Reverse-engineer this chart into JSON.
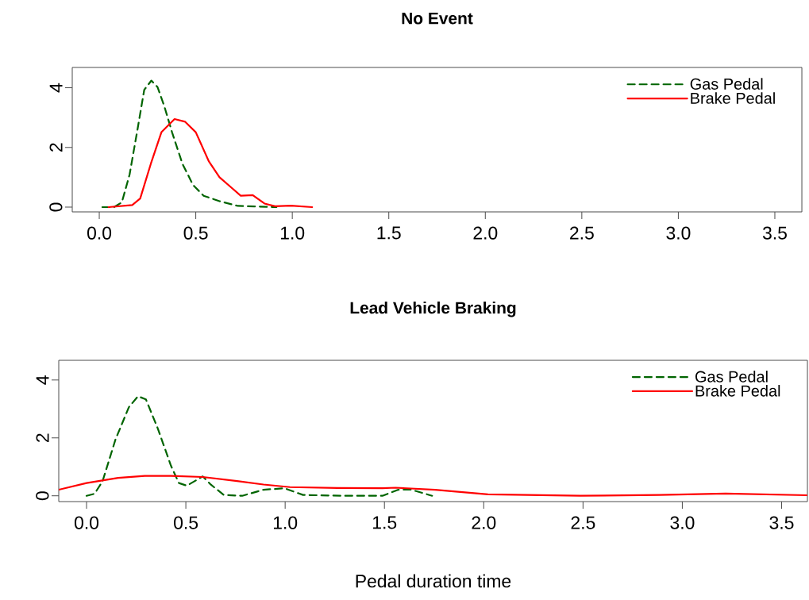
{
  "chart_data": [
    {
      "type": "line",
      "title": "No Event",
      "xlim": [
        -0.14,
        3.64
      ],
      "ylim": [
        -0.16,
        4.68
      ],
      "xticks": [
        {
          "value": 0,
          "label": "0.0"
        },
        {
          "value": 0.5,
          "label": "0.5"
        },
        {
          "value": 1,
          "label": "1.0"
        },
        {
          "value": 1.5,
          "label": "1.5"
        },
        {
          "value": 2,
          "label": "2.0"
        },
        {
          "value": 2.5,
          "label": "2.5"
        },
        {
          "value": 3,
          "label": "3.0"
        },
        {
          "value": 3.5,
          "label": "3.5"
        }
      ],
      "yticks": [
        0,
        2,
        4
      ],
      "legend": "top right",
      "grid": false,
      "series": [
        {
          "name": "Gas Pedal",
          "color": "#006400",
          "line_style": "dashed",
          "x": [
            0.016,
            0.076,
            0.117,
            0.157,
            0.198,
            0.233,
            0.27,
            0.302,
            0.336,
            0.377,
            0.431,
            0.486,
            0.541,
            0.623,
            0.719,
            0.918
          ],
          "values": [
            0,
            0,
            0.16,
            1.09,
            2.6,
            3.93,
            4.24,
            4.02,
            3.4,
            2.51,
            1.45,
            0.74,
            0.38,
            0.2,
            0.04,
            0
          ]
        },
        {
          "name": "Brake Pedal",
          "color": "#ff0000",
          "line_style": "solid",
          "x": [
            0.048,
            0.171,
            0.212,
            0.267,
            0.322,
            0.39,
            0.445,
            0.5,
            0.568,
            0.623,
            0.678,
            0.733,
            0.795,
            0.856,
            0.911,
            0.993,
            1.103
          ],
          "values": [
            0,
            0.07,
            0.29,
            1.45,
            2.51,
            2.95,
            2.86,
            2.51,
            1.53,
            1.0,
            0.69,
            0.38,
            0.4,
            0.12,
            0.03,
            0.05,
            0
          ]
        }
      ]
    },
    {
      "type": "line",
      "title": "Lead Vehicle Braking",
      "xlabel": "Pedal duration time",
      "xlim": [
        -0.14,
        3.63
      ],
      "ylim": [
        -0.2,
        4.68
      ],
      "xticks": [
        {
          "value": 0,
          "label": "0.0"
        },
        {
          "value": 0.5,
          "label": "0.5"
        },
        {
          "value": 1,
          "label": "1.0"
        },
        {
          "value": 1.5,
          "label": "1.5"
        },
        {
          "value": 2,
          "label": "2.0"
        },
        {
          "value": 2.5,
          "label": "2.5"
        },
        {
          "value": 3,
          "label": "3.0"
        },
        {
          "value": 3.5,
          "label": "3.5"
        }
      ],
      "yticks": [
        0,
        2,
        4
      ],
      "legend": "top right",
      "grid": false,
      "series": [
        {
          "name": "Gas Pedal",
          "color": "#006400",
          "line_style": "dashed",
          "x": [
            0,
            0.04,
            0.08,
            0.146,
            0.213,
            0.259,
            0.299,
            0.359,
            0.425,
            0.465,
            0.505,
            0.585,
            0.625,
            0.691,
            0.784,
            0.891,
            0.997,
            1.09,
            1.29,
            1.49,
            1.57,
            1.63,
            1.74
          ],
          "values": [
            0,
            0.07,
            0.49,
            1.95,
            3.06,
            3.44,
            3.33,
            2.32,
            1.04,
            0.44,
            0.35,
            0.67,
            0.39,
            0.03,
            0,
            0.21,
            0.26,
            0.03,
            0,
            0,
            0.21,
            0.22,
            0
          ]
        },
        {
          "name": "Brake Pedal",
          "color": "#ff0000",
          "line_style": "solid",
          "x": [
            -0.14,
            0,
            0.159,
            0.293,
            0.425,
            0.585,
            0.758,
            0.891,
            1.024,
            1.263,
            1.49,
            1.556,
            1.755,
            2.021,
            2.486,
            2.885,
            3.218,
            3.626
          ],
          "values": [
            0.21,
            0.44,
            0.62,
            0.69,
            0.69,
            0.65,
            0.51,
            0.39,
            0.3,
            0.27,
            0.26,
            0.28,
            0.21,
            0.05,
            0,
            0.03,
            0.08,
            0.02
          ]
        }
      ]
    }
  ]
}
